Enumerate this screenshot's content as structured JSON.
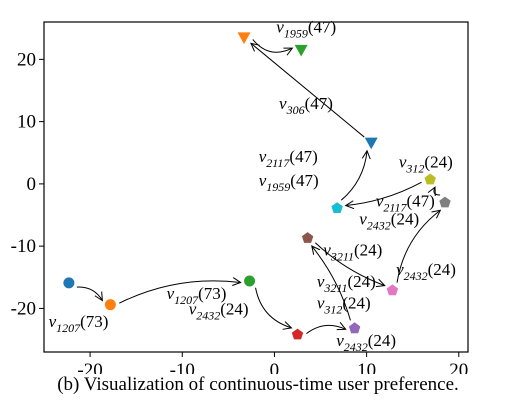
{
  "caption": "(b) Visualization of continuous-time user preference.",
  "chart_data": {
    "type": "scatter",
    "xlim": [
      -25,
      21
    ],
    "ylim": [
      -27,
      26
    ],
    "xticks": [
      -20,
      -10,
      0,
      10,
      20
    ],
    "yticks": [
      20,
      10,
      0,
      -10,
      -20
    ],
    "xtick_labels": [
      "-20",
      "-10",
      "0",
      "10",
      "20"
    ],
    "ytick_labels": [
      "20",
      "10",
      "0",
      "-10",
      "-20"
    ],
    "points": [
      {
        "id": "p1",
        "x": -22.3,
        "y": -15.9,
        "color": "#1f77b4",
        "marker": "circle"
      },
      {
        "id": "p2",
        "x": -17.8,
        "y": -19.4,
        "color": "#ff7f0e",
        "marker": "circle"
      },
      {
        "id": "p3",
        "x": -2.7,
        "y": -15.6,
        "color": "#2ca02c",
        "marker": "circle"
      },
      {
        "id": "p4",
        "x": 2.5,
        "y": -24.2,
        "color": "#d62728",
        "marker": "pentagon"
      },
      {
        "id": "p5",
        "x": 8.7,
        "y": -23.2,
        "color": "#9467bd",
        "marker": "pentagon"
      },
      {
        "id": "p6",
        "x": 3.6,
        "y": -8.7,
        "color": "#8c564b",
        "marker": "pentagon"
      },
      {
        "id": "p7",
        "x": 12.8,
        "y": -17.1,
        "color": "#e377c2",
        "marker": "pentagon"
      },
      {
        "id": "p8",
        "x": 18.5,
        "y": -3.0,
        "color": "#7f7f7f",
        "marker": "pentagon"
      },
      {
        "id": "p9",
        "x": 16.9,
        "y": 0.7,
        "color": "#bcbd22",
        "marker": "pentagon"
      },
      {
        "id": "p10",
        "x": 6.8,
        "y": -3.9,
        "color": "#17becf",
        "marker": "pentagon"
      },
      {
        "id": "p11",
        "x": 10.5,
        "y": 6.6,
        "color": "#1f77b4",
        "marker": "triangle"
      },
      {
        "id": "p12",
        "x": -3.3,
        "y": 23.5,
        "color": "#ff7f0e",
        "marker": "triangle"
      },
      {
        "id": "p13",
        "x": 2.9,
        "y": 21.5,
        "color": "#2ca02c",
        "marker": "triangle"
      }
    ],
    "arrows": [
      {
        "from": "p1",
        "to": "p2",
        "rad": 0.3
      },
      {
        "from": "p2",
        "to": "p3",
        "rad": 0.15
      },
      {
        "from": "p3",
        "to": "p4",
        "rad": -0.3
      },
      {
        "from": "p4",
        "to": "p5",
        "rad": 0.3
      },
      {
        "from": "p5",
        "to": "p6",
        "rad": -0.1
      },
      {
        "from": "p6",
        "to": "p7",
        "rad": -0.1
      },
      {
        "from": "p7",
        "to": "p8",
        "rad": 0.2
      },
      {
        "from": "p8",
        "to": "p9",
        "rad": 0.8
      },
      {
        "from": "p9",
        "to": "p10",
        "rad": 0.1
      },
      {
        "from": "p10",
        "to": "p11",
        "rad": -0.2
      },
      {
        "from": "p11",
        "to": "p12",
        "rad": 0
      },
      {
        "from": "p12",
        "to": "p13",
        "rad": -0.4
      }
    ],
    "annotations": [
      {
        "sym": "v",
        "sub": "1959",
        "num": "(47)",
        "x": 0.2,
        "y": 24.3
      },
      {
        "sym": "v",
        "sub": "306",
        "num": "(47)",
        "x": 0.5,
        "y": 12.0
      },
      {
        "sym": "v",
        "sub": "2117",
        "num": "(47)",
        "x": -1.7,
        "y": 3.5
      },
      {
        "sym": "v",
        "sub": "1959",
        "num": "(47)",
        "x": -1.7,
        "y": -0.3
      },
      {
        "sym": "v",
        "sub": "312",
        "num": "(24)",
        "x": 13.5,
        "y": 2.6
      },
      {
        "sym": "v",
        "sub": "2117",
        "num": "(47)",
        "x": 11.0,
        "y": -3.6
      },
      {
        "sym": "v",
        "sub": "2432",
        "num": "(24)",
        "x": 9.2,
        "y": -6.5
      },
      {
        "sym": "v",
        "sub": "3211",
        "num": "(24)",
        "x": 5.3,
        "y": -11.5
      },
      {
        "sym": "v",
        "sub": "2432",
        "num": "(24)",
        "x": 13.2,
        "y": -14.6
      },
      {
        "sym": "v",
        "sub": "3211",
        "num": "(24)",
        "x": 4.6,
        "y": -16.6
      },
      {
        "sym": "v",
        "sub": "312",
        "num": "(24)",
        "x": 4.6,
        "y": -20.0
      },
      {
        "sym": "v",
        "sub": "1207",
        "num": "(73)",
        "x": -11.7,
        "y": -18.5
      },
      {
        "sym": "v",
        "sub": "2432",
        "num": "(24)",
        "x": -9.3,
        "y": -21.0
      },
      {
        "sym": "v",
        "sub": "1207",
        "num": "(73)",
        "x": -24.5,
        "y": -23.0
      },
      {
        "sym": "v",
        "sub": "2432",
        "num": "(24)",
        "x": 6.7,
        "y": -26.0
      }
    ]
  }
}
